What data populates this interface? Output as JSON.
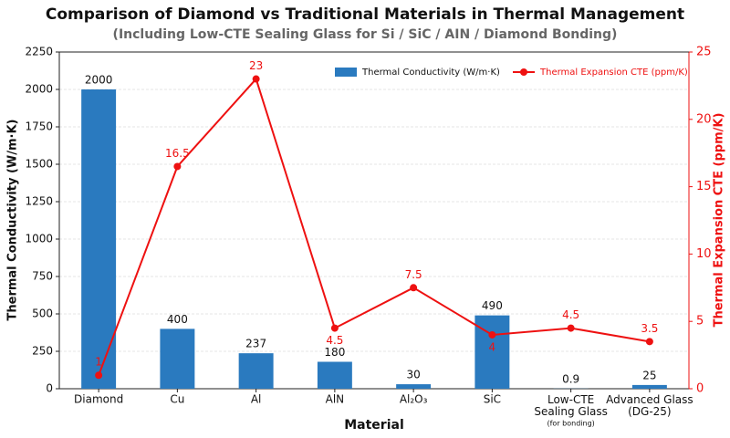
{
  "chart_data": {
    "type": "bar_line",
    "title": "Comparison of Diamond vs Traditional Materials in Thermal Management",
    "subtitle": "(Including Low-CTE Sealing Glass for Si / SiC / AIN / Diamond Bonding)",
    "x_label": "Material",
    "y_label": "Thermal Conductivity (W/m·K)",
    "y2_label": "Thermal Expansion CTE (ppm/K)",
    "categories": [
      "Diamond",
      "Cu",
      "Al",
      "AlN",
      "Al₂O₃",
      "SiC",
      "Low-CTE\nSealing Glass",
      "Advanced Glass\n(DG-25)"
    ],
    "category_note": "(for bonding)",
    "series": [
      {
        "name": "Thermal Conductivity (W/m·K)",
        "type": "bar",
        "color": "#2a7abf",
        "values": [
          2000,
          400,
          237,
          180,
          30,
          490,
          0.9,
          25
        ]
      },
      {
        "name": "Thermal Expansion CTE (ppm/K)",
        "type": "line",
        "axis": "y2",
        "color": "#ee1111",
        "values": [
          1,
          16.5,
          23,
          4.5,
          7.5,
          4,
          4.5,
          3.5
        ]
      }
    ],
    "ylim": [
      0,
      2250
    ],
    "yticks": [
      0,
      250,
      500,
      750,
      1000,
      1250,
      1500,
      1750,
      2000,
      2250
    ],
    "y2lim": [
      0,
      25
    ],
    "y2ticks": [
      0,
      5,
      10,
      15,
      20,
      25
    ],
    "grid": true,
    "legend": "top-right"
  }
}
